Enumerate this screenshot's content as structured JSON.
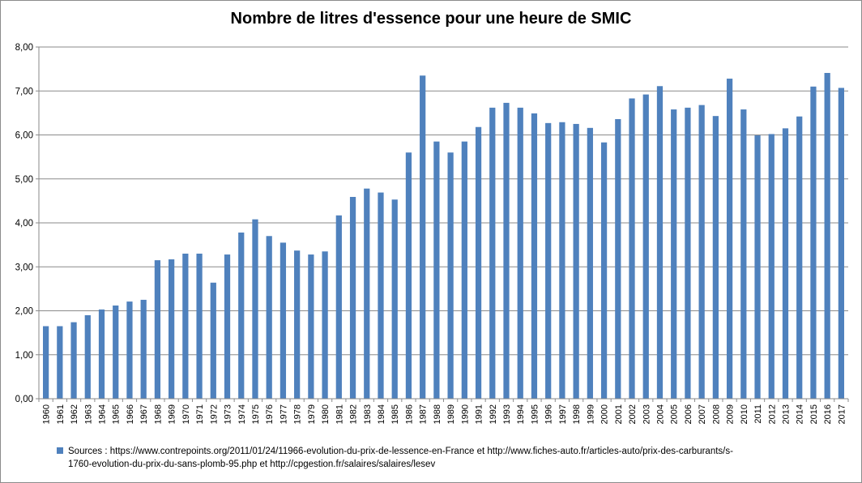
{
  "chart_data": {
    "type": "bar",
    "title": "Nombre de litres d'essence pour une heure de SMIC",
    "categories": [
      "1960",
      "1961",
      "1962",
      "1963",
      "1964",
      "1965",
      "1966",
      "1967",
      "1968",
      "1969",
      "1970",
      "1971",
      "1972",
      "1973",
      "1974",
      "1975",
      "1976",
      "1977",
      "1978",
      "1979",
      "1980",
      "1981",
      "1982",
      "1983",
      "1984",
      "1985",
      "1986",
      "1987",
      "1988",
      "1989",
      "1990",
      "1991",
      "1992",
      "1993",
      "1994",
      "1995",
      "1996",
      "1997",
      "1998",
      "1999",
      "2000",
      "2001",
      "2002",
      "2003",
      "2004",
      "2005",
      "2006",
      "2007",
      "2008",
      "2009",
      "2010",
      "2011",
      "2012",
      "2013",
      "2014",
      "2015",
      "2016",
      "2017"
    ],
    "values": [
      1.65,
      1.65,
      1.74,
      1.9,
      2.03,
      2.12,
      2.21,
      2.25,
      3.15,
      3.17,
      3.3,
      3.3,
      2.64,
      3.28,
      3.78,
      4.08,
      3.7,
      3.55,
      3.37,
      3.28,
      3.35,
      4.17,
      4.59,
      4.78,
      4.69,
      4.53,
      5.6,
      7.35,
      5.85,
      5.6,
      5.85,
      6.18,
      6.62,
      6.73,
      6.62,
      6.49,
      6.27,
      6.29,
      6.25,
      6.16,
      5.83,
      6.36,
      6.83,
      6.92,
      7.11,
      6.58,
      6.62,
      6.68,
      6.43,
      7.28,
      6.58,
      5.99,
      6.02,
      6.15,
      6.42,
      7.1,
      7.41,
      7.07
    ],
    "ylim": [
      0,
      8
    ],
    "yticks": [
      "0,00",
      "1,00",
      "2,00",
      "3,00",
      "4,00",
      "5,00",
      "6,00",
      "7,00",
      "8,00"
    ],
    "grid": true,
    "legend_position": "bottom",
    "series_color": "#4F81BD",
    "legend_lines": [
      "Sources : https://www.contrepoints.org/2011/01/24/11966-evolution-du-prix-de-lessence-en-France  et  http://www.fiches-auto.fr/articles-auto/prix-des-carburants/s-",
      "1760-evolution-du-prix-du-sans-plomb-95.php  et  http://cpgestion.fr/salaires/salaires/lesev"
    ]
  }
}
